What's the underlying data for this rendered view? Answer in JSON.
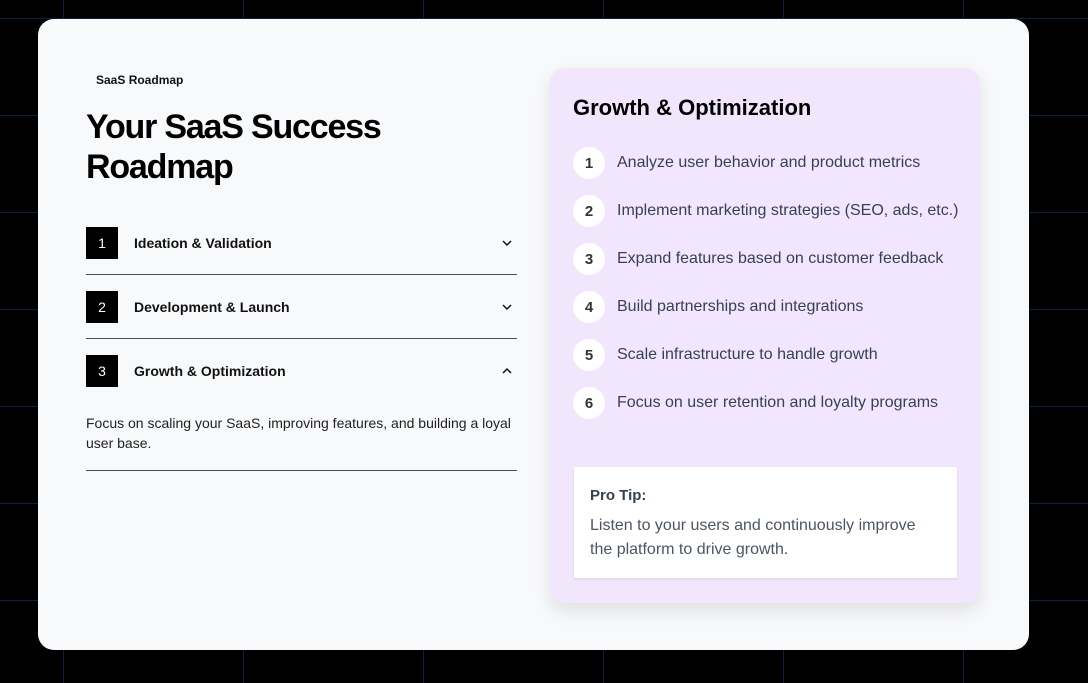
{
  "header": {
    "eyebrow": "SaaS Roadmap",
    "title": "Your SaaS Success Roadmap"
  },
  "accordion": [
    {
      "number": "1",
      "label": "Ideation & Validation",
      "expanded": false
    },
    {
      "number": "2",
      "label": "Development & Launch",
      "expanded": false
    },
    {
      "number": "3",
      "label": "Growth & Optimization",
      "expanded": true,
      "description": "Focus on scaling your SaaS, improving features, and building a loyal user base."
    }
  ],
  "panel": {
    "title": "Growth & Optimization",
    "bg_color": "#f2e6fd",
    "steps": [
      {
        "number": "1",
        "text": "Analyze user behavior and product metrics"
      },
      {
        "number": "2",
        "text": "Implement marketing strategies (SEO, ads, etc.)"
      },
      {
        "number": "3",
        "text": "Expand features based on customer feedback"
      },
      {
        "number": "4",
        "text": "Build partnerships and integrations"
      },
      {
        "number": "5",
        "text": "Scale infrastructure to handle growth"
      },
      {
        "number": "6",
        "text": "Focus on user retention and loyalty programs"
      }
    ],
    "tip": {
      "heading": "Pro Tip:",
      "text": "Listen to your users and continuously improve the platform to drive growth."
    }
  }
}
